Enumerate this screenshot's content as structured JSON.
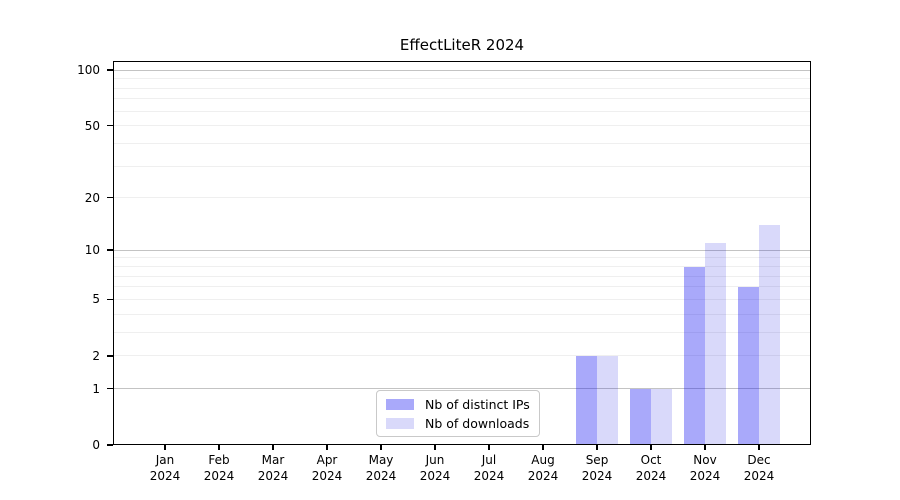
{
  "chart_data": {
    "type": "bar",
    "title": "EffectLiteR 2024",
    "x_axis": {
      "categories": [
        "Jan",
        "Feb",
        "Mar",
        "Apr",
        "May",
        "Jun",
        "Jul",
        "Aug",
        "Sep",
        "Oct",
        "Nov",
        "Dec"
      ],
      "year_label": "2024"
    },
    "y_axis": {
      "scale": "log1p",
      "tick_values": [
        0,
        1,
        2,
        5,
        10,
        20,
        50,
        100
      ],
      "tick_labels": [
        "0",
        "1",
        "2",
        "5",
        "10",
        "20",
        "50",
        "100"
      ],
      "ylim": [
        0,
        112
      ],
      "major_gridlines": [
        1,
        10,
        100
      ],
      "minor_gridlines": [
        2,
        3,
        4,
        5,
        6,
        7,
        8,
        9,
        20,
        30,
        40,
        50,
        60,
        70,
        80,
        90
      ],
      "grid": true
    },
    "series": [
      {
        "name": "Nb of distinct IPs",
        "color": "#a9a9f9",
        "fill": "rgba(10,10,240,0.35)",
        "values": [
          0,
          0,
          0,
          0,
          0,
          0,
          0,
          0,
          2,
          1,
          8,
          6
        ]
      },
      {
        "name": "Nb of downloads",
        "color": "#d8d8f9",
        "fill": "rgba(0,0,220,0.15)",
        "values": [
          0,
          0,
          0,
          0,
          0,
          0,
          0,
          0,
          2,
          1,
          11,
          14
        ]
      }
    ],
    "legend": {
      "position": "bottom-center"
    },
    "colors": {
      "major_gridline": "#c3c3c3",
      "minor_gridline": "#efefef",
      "axis": "#000000",
      "background": "#ffffff"
    }
  }
}
